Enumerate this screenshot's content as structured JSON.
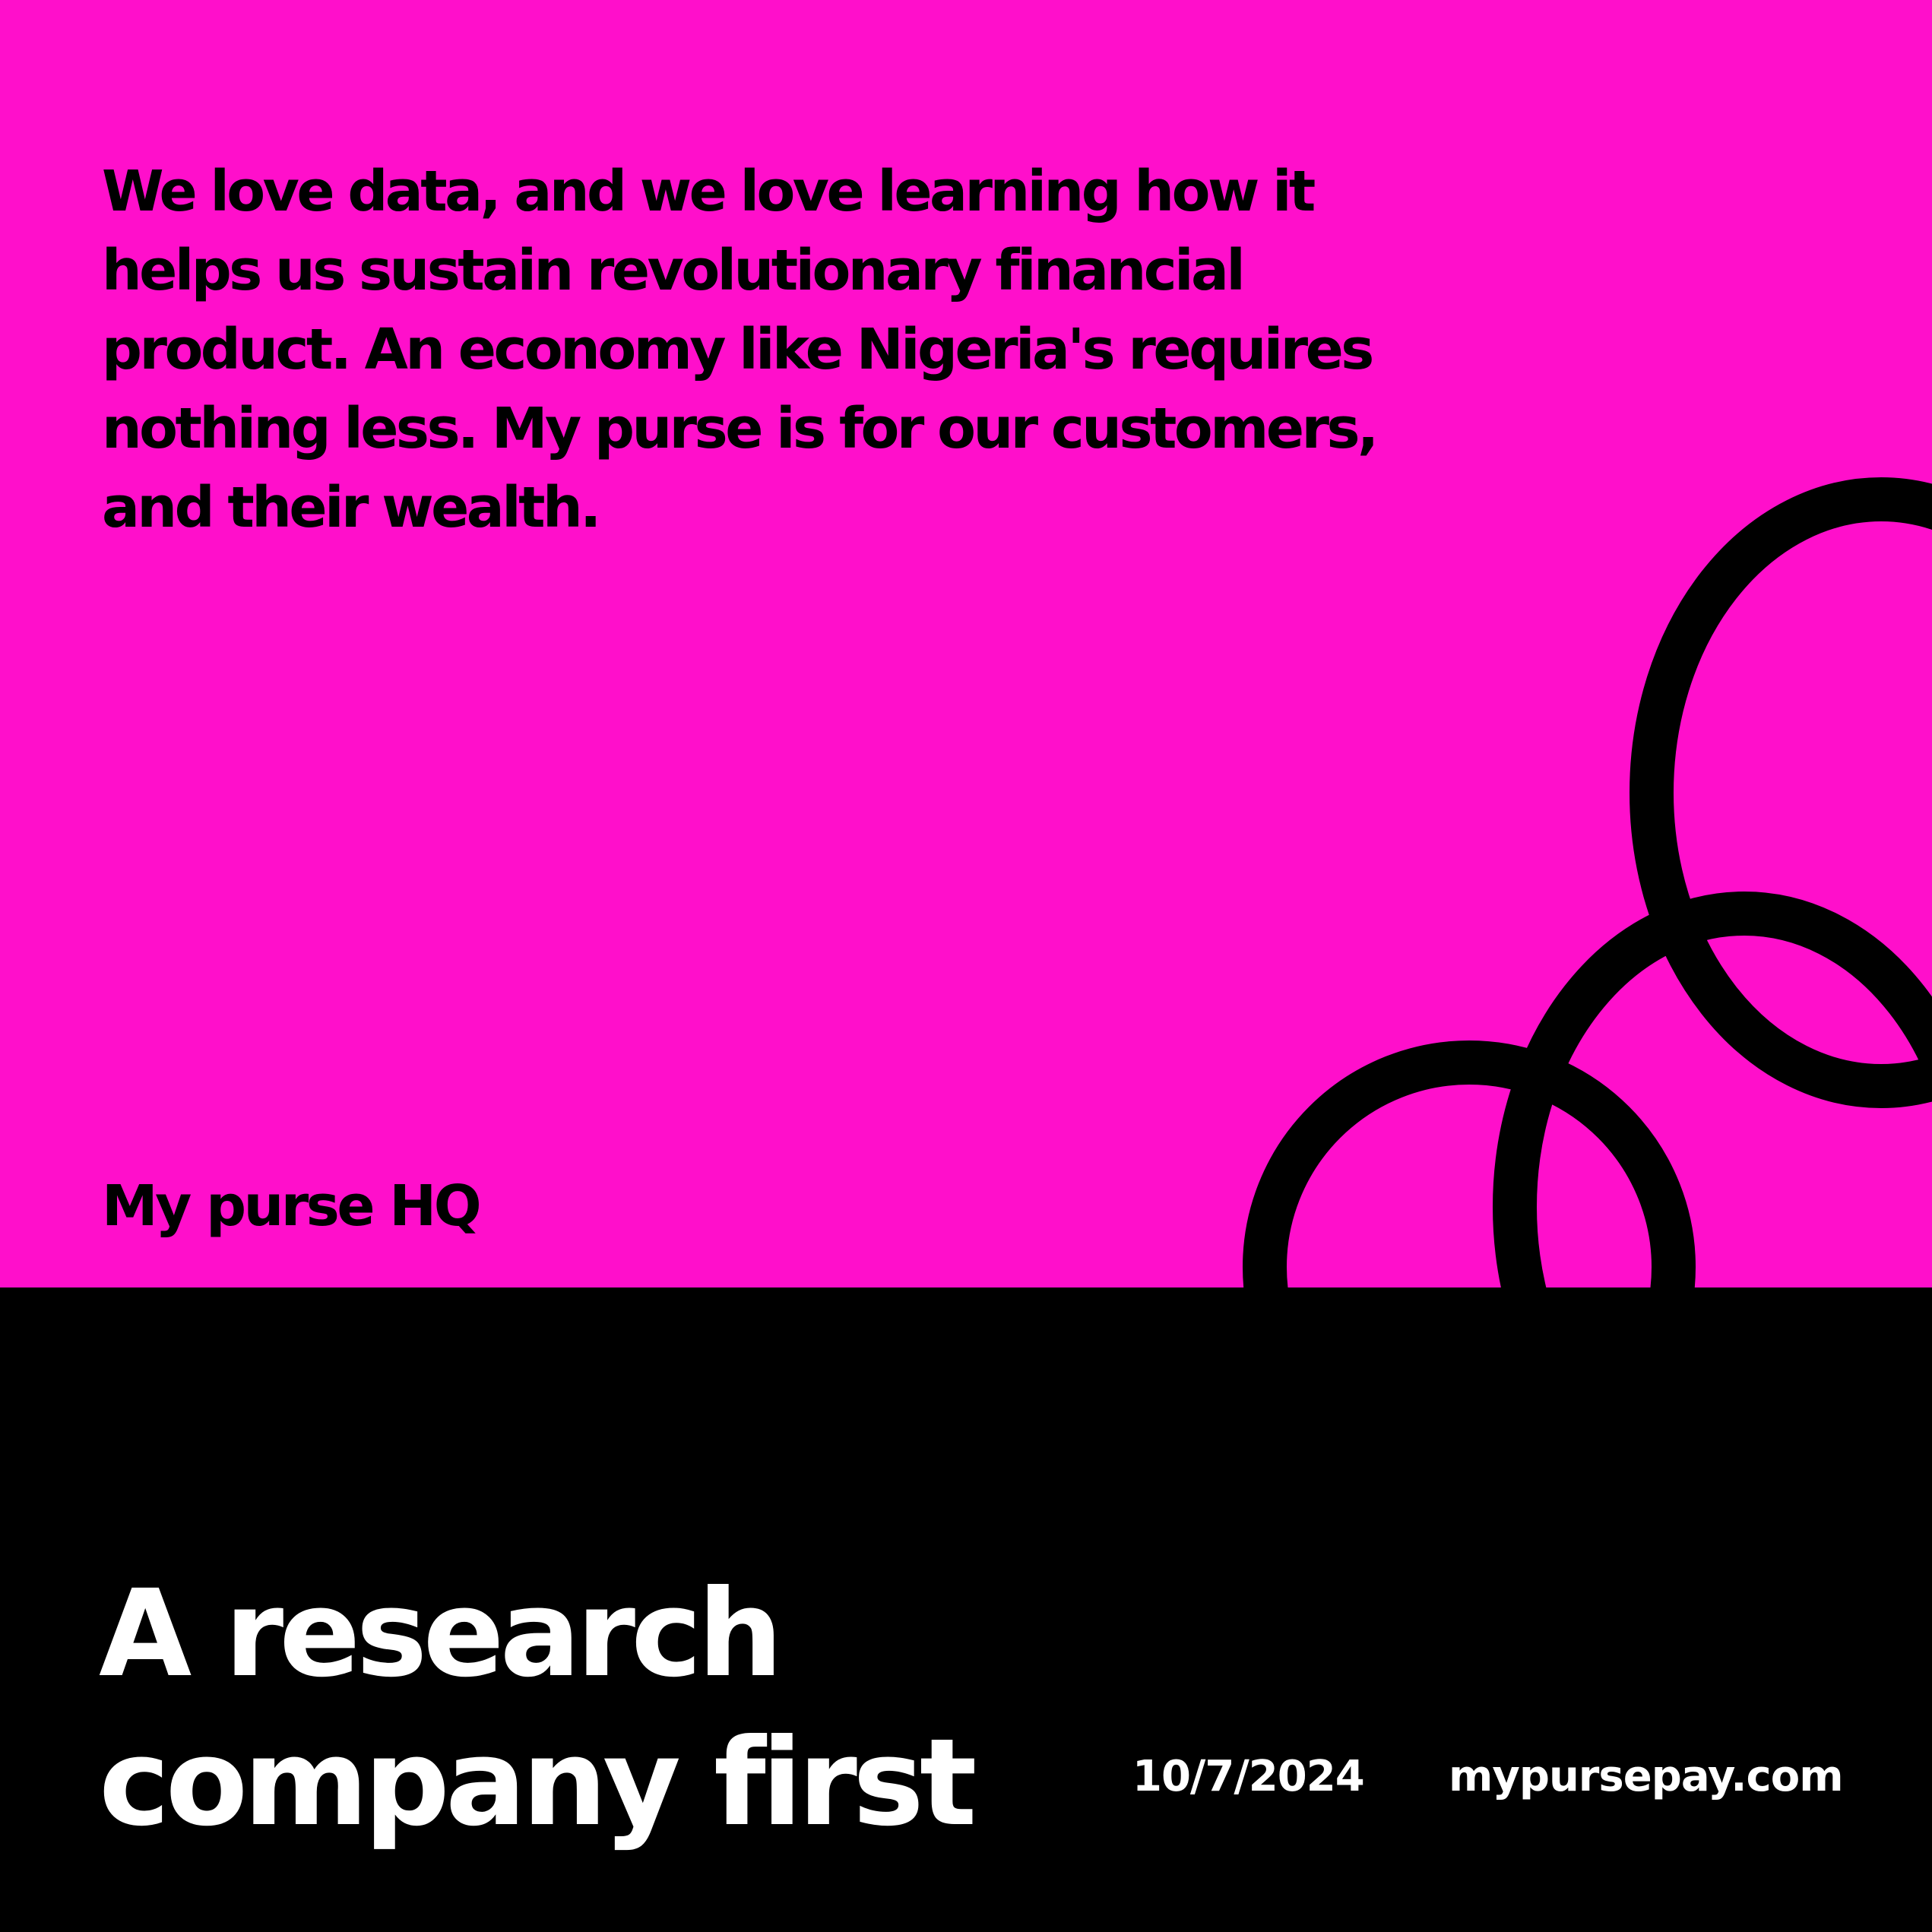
{
  "colors": {
    "pink": "#FF0FCB",
    "black": "#000000",
    "white": "#FFFFFF"
  },
  "intro_text": "We love data, and we love learning how it helps us sustain revolutionary financial product. An economy like Nigeria's requires nothing less. My purse is for our customers, and their wealth.",
  "org_name": "My purse HQ",
  "headline": "A research company first",
  "date": "10/7/2024",
  "website": "mypursepay.com",
  "decoration": "three-interlocking-rings"
}
